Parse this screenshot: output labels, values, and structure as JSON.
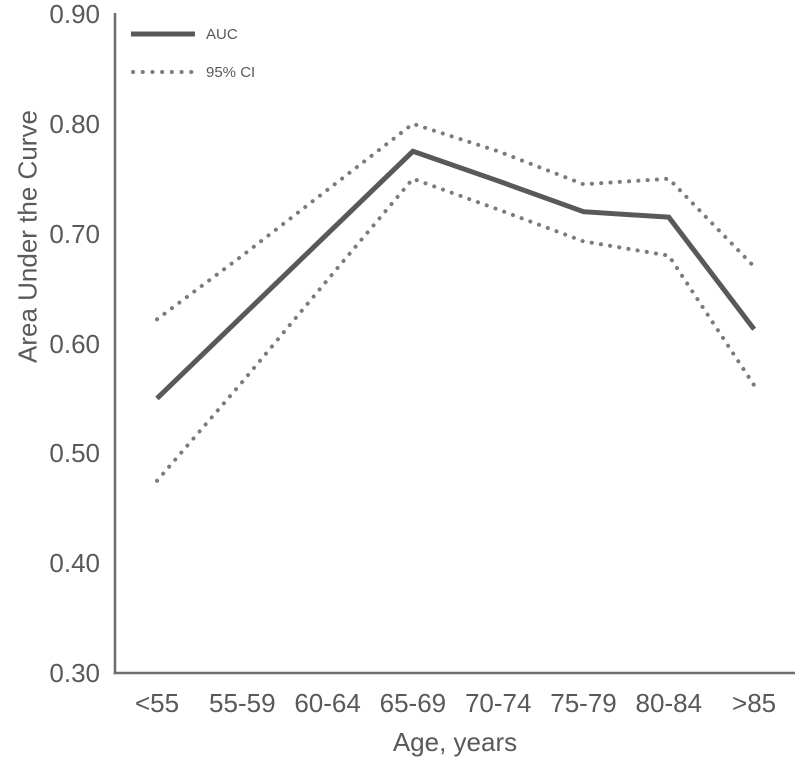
{
  "chart_data": {
    "type": "line",
    "title": "",
    "xlabel": "Age, years",
    "ylabel": "Area Under the Curve",
    "categories": [
      "<55",
      "55-59",
      "60-64",
      "65-69",
      "70-74",
      "75-79",
      "80-84",
      ">85"
    ],
    "series": [
      {
        "name": "AUC",
        "style": "solid",
        "values": [
          0.55,
          0.625,
          0.7,
          0.775,
          0.748,
          0.72,
          0.715,
          0.613
        ]
      },
      {
        "name": "95% CI upper",
        "style": "dotted",
        "values": [
          0.622,
          0.68,
          0.74,
          0.8,
          0.775,
          0.745,
          0.75,
          0.67
        ]
      },
      {
        "name": "95% CI lower",
        "style": "dotted",
        "values": [
          0.475,
          0.565,
          0.658,
          0.75,
          0.722,
          0.693,
          0.68,
          0.562
        ]
      }
    ],
    "ylim": [
      0.3,
      0.9
    ],
    "yticks": [
      "0.90",
      "0.80",
      "0.70",
      "0.60",
      "0.50",
      "0.40",
      "0.30"
    ],
    "grid": false,
    "legend": {
      "position": "top-left",
      "entries": [
        {
          "label": "AUC",
          "style": "solid"
        },
        {
          "label": "95% CI",
          "style": "dotted"
        }
      ]
    }
  },
  "colors": {
    "solid_line": "#595959",
    "dotted_line": "#7b7b7b",
    "axis": "#6e6e6e",
    "text": "#595959",
    "background": "#ffffff"
  }
}
